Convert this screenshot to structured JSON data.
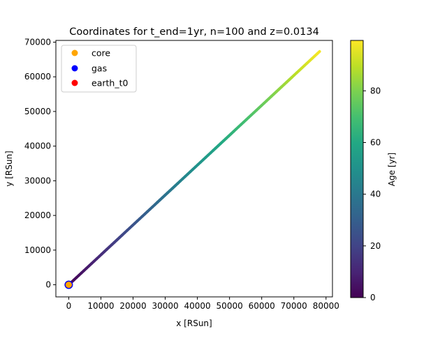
{
  "chart_data": {
    "type": "scatter",
    "title": "Coordinates for t_end=1yr, n=100 and z=0.0134",
    "xlabel": "x [RSun]",
    "ylabel": "y [RSun]",
    "xlim": [
      -4000,
      82000
    ],
    "ylim": [
      -3500,
      70500
    ],
    "x_ticks": [
      0,
      10000,
      20000,
      30000,
      40000,
      50000,
      60000,
      70000,
      80000
    ],
    "x_tick_labels": [
      "0",
      "10000",
      "20000",
      "30000",
      "40000",
      "50000",
      "60000",
      "70000",
      "80000"
    ],
    "y_ticks": [
      0,
      10000,
      20000,
      30000,
      40000,
      50000,
      60000,
      70000
    ],
    "y_tick_labels": [
      "0",
      "10000",
      "20000",
      "30000",
      "40000",
      "50000",
      "60000",
      "70000"
    ],
    "grid": false,
    "legend_position": "upper-left",
    "series": [
      {
        "name": "core",
        "color": "#ffa500",
        "x": [
          0
        ],
        "y": [
          0
        ]
      },
      {
        "name": "gas",
        "color": "#0000ff",
        "x": [
          0
        ],
        "y": [
          0
        ]
      },
      {
        "name": "earth_t0",
        "color": "#ff0000",
        "x": [
          0
        ],
        "y": [
          0
        ]
      }
    ],
    "trajectory": {
      "x_start": 0,
      "y_start": 0,
      "x_end": 78000,
      "y_end": 67300,
      "age_start": 0,
      "age_end": 99,
      "points": 100
    },
    "colorbar": {
      "label": "Age [yr]",
      "colormap": "viridis",
      "range": [
        0,
        99.5
      ],
      "ticks": [
        0,
        20,
        40,
        60,
        80
      ],
      "tick_labels": [
        "0",
        "20",
        "40",
        "60",
        "80"
      ]
    }
  }
}
